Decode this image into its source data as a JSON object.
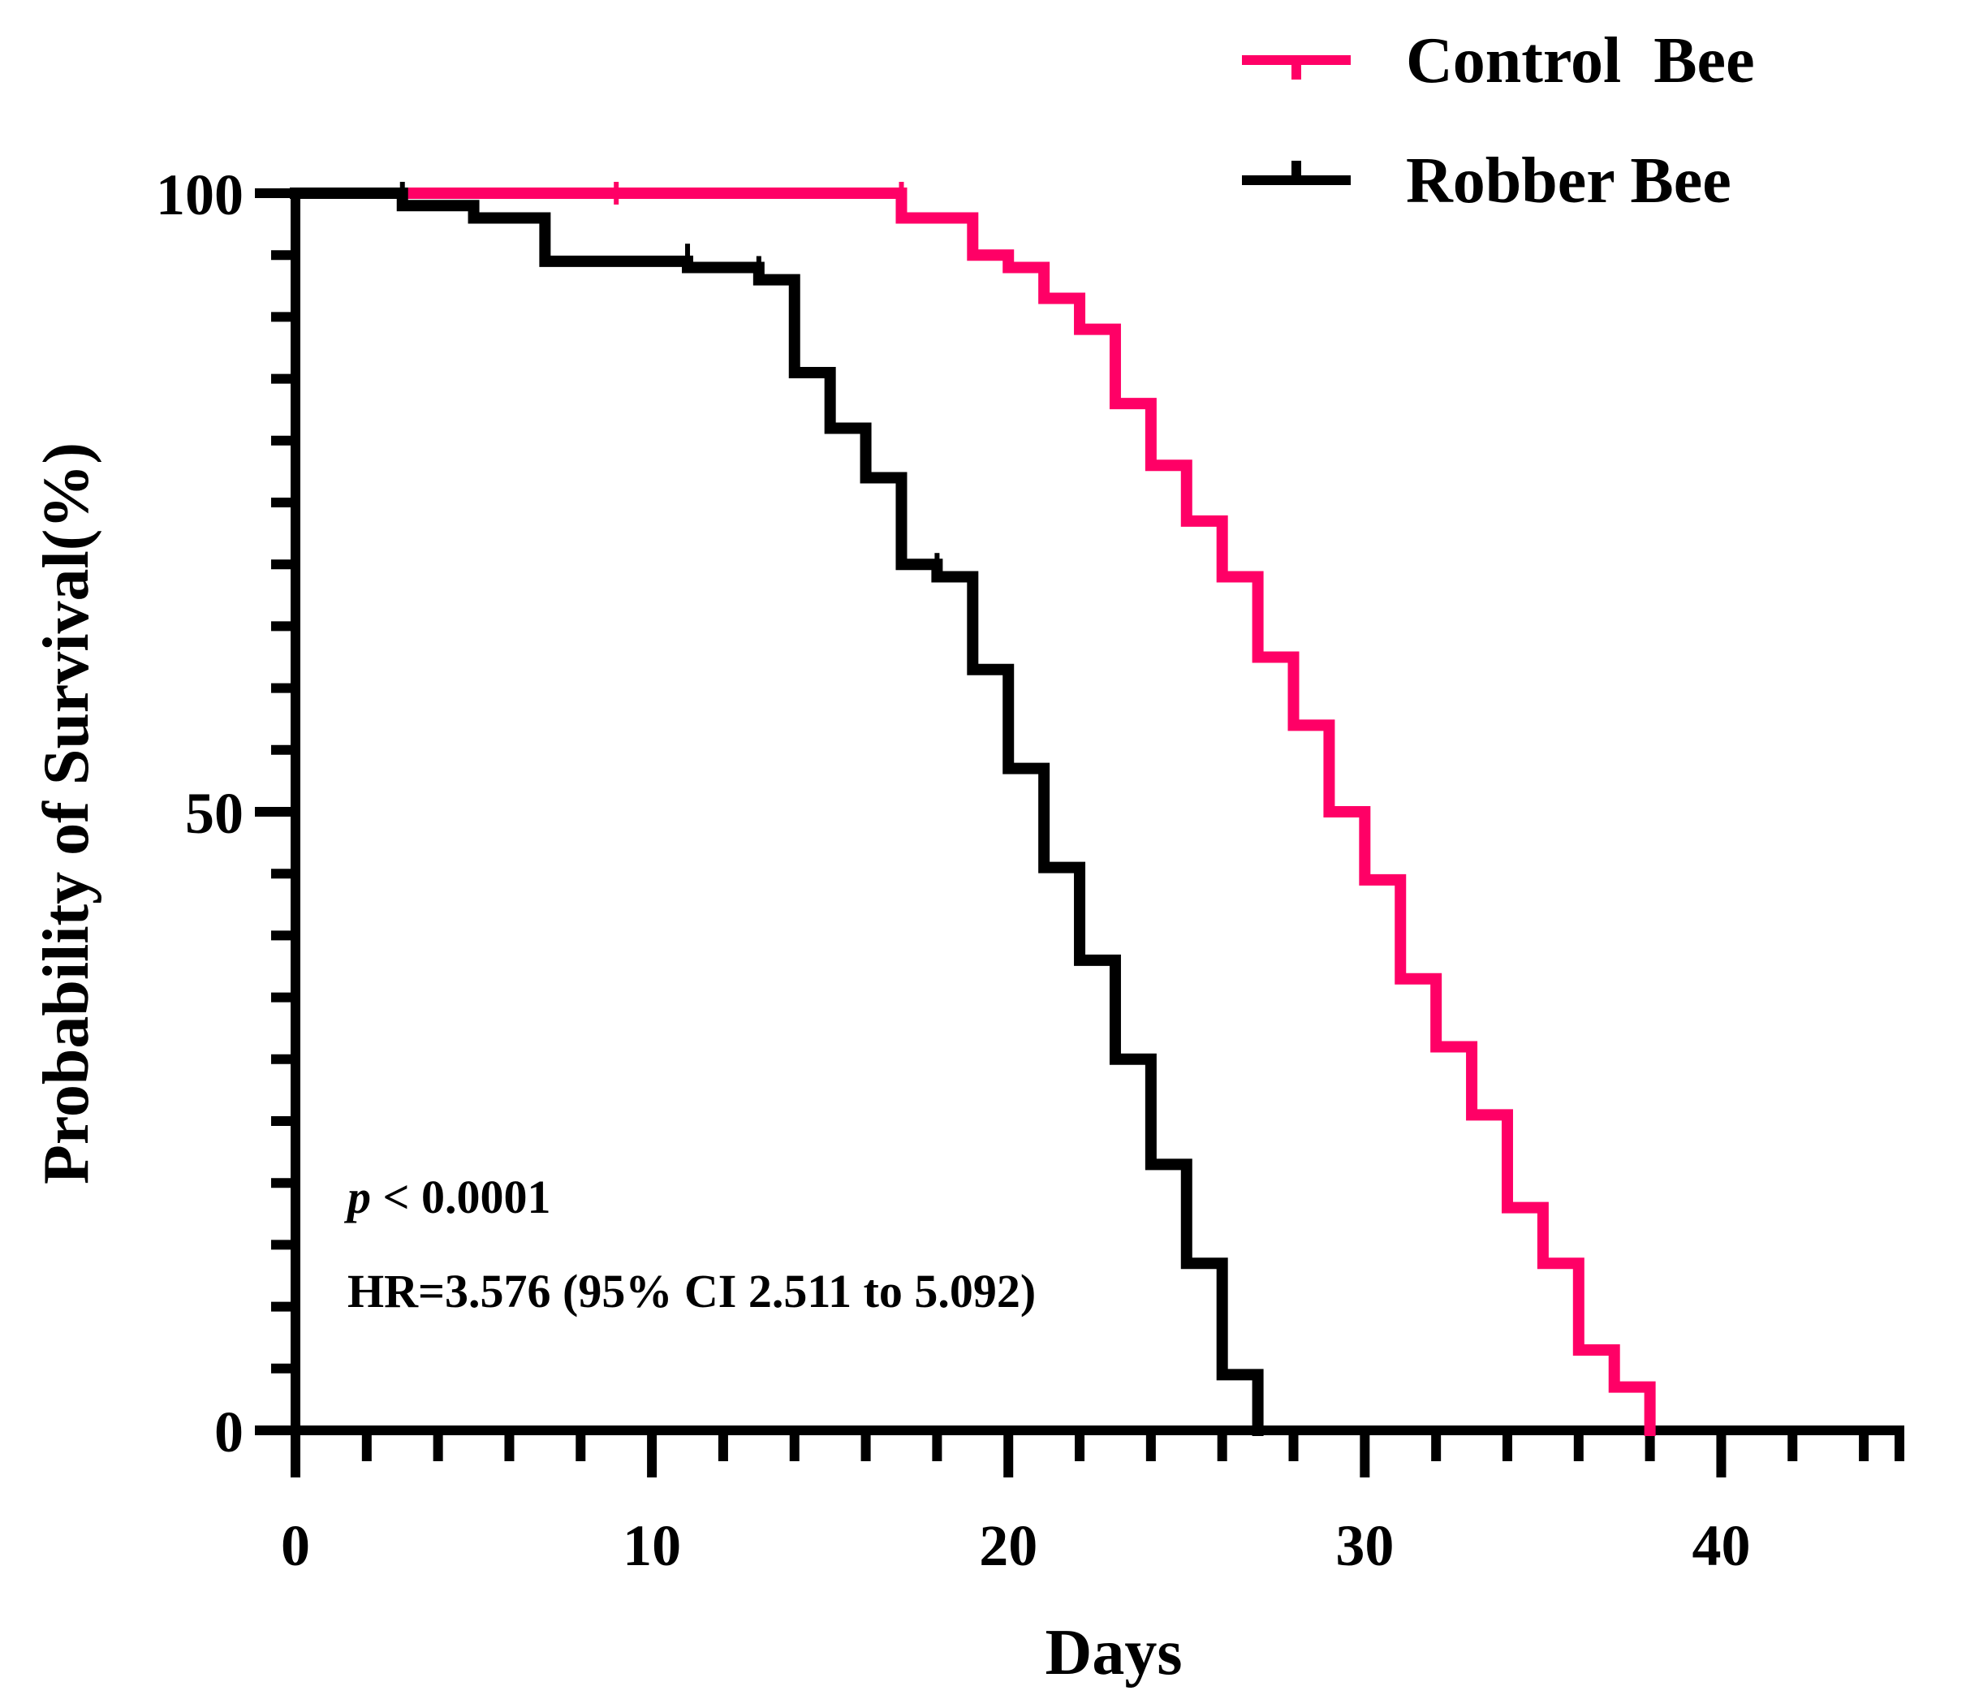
{
  "chart_data": {
    "type": "line",
    "subtype": "kaplan-meier-step",
    "title": "",
    "xlabel": "Days",
    "ylabel": "Probability of Survival(%)",
    "xlim": [
      0,
      45
    ],
    "ylim": [
      0,
      100
    ],
    "x_ticks": [
      0,
      10,
      20,
      30,
      40
    ],
    "x_minor_step": 2,
    "y_ticks": [
      0,
      50,
      100
    ],
    "y_minor_step": 5,
    "legend_position": "top-right",
    "series": [
      {
        "name": "Control  Bee",
        "color": "#FF0066",
        "steps": [
          [
            0,
            100
          ],
          [
            17,
            98
          ],
          [
            19,
            95
          ],
          [
            20,
            94
          ],
          [
            21,
            91.5
          ],
          [
            22,
            89
          ],
          [
            23,
            83
          ],
          [
            24,
            78
          ],
          [
            25,
            73.5
          ],
          [
            26,
            69
          ],
          [
            27,
            62.5
          ],
          [
            28,
            57
          ],
          [
            29,
            50
          ],
          [
            30,
            44.5
          ],
          [
            31,
            36.5
          ],
          [
            32,
            31
          ],
          [
            33,
            25.5
          ],
          [
            34,
            18
          ],
          [
            35,
            13.5
          ],
          [
            36,
            6.5
          ],
          [
            37,
            3.5
          ],
          [
            38,
            0
          ]
        ],
        "censored": [
          [
            9,
            100
          ],
          [
            17,
            100
          ],
          [
            19,
            96
          ],
          [
            20,
            94.5
          ]
        ],
        "end_x": 38
      },
      {
        "name": "Robber Bee",
        "color": "#000000",
        "steps": [
          [
            0,
            100
          ],
          [
            3,
            99
          ],
          [
            5,
            98
          ],
          [
            7,
            94.5
          ],
          [
            11,
            94
          ],
          [
            13,
            93
          ],
          [
            14,
            85.5
          ],
          [
            15,
            81
          ],
          [
            16,
            77
          ],
          [
            17,
            70
          ],
          [
            18,
            69
          ],
          [
            19,
            61.5
          ],
          [
            20,
            53.5
          ],
          [
            21,
            45.5
          ],
          [
            22,
            38
          ],
          [
            23,
            30
          ],
          [
            24,
            21.5
          ],
          [
            25,
            13.5
          ],
          [
            26,
            4.5
          ],
          [
            27,
            0
          ]
        ],
        "censored": [
          [
            3,
            100
          ],
          [
            11,
            95
          ],
          [
            13,
            94
          ],
          [
            18,
            70
          ]
        ],
        "end_x": 27
      }
    ],
    "annotations": {
      "p_symbol": "p",
      "p_value": " < 0.0001",
      "hr": "HR=3.576 (95% CI 2.511 to 5.092)"
    }
  }
}
